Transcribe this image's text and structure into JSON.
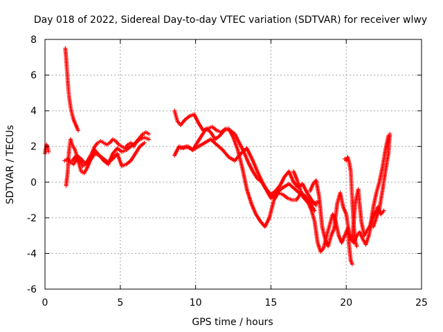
{
  "chart_data": {
    "type": "scatter",
    "title": "Day 018 of 2022, Sidereal Day-to-day VTEC variation (SDTVAR) for receiver wlwy",
    "xlabel": "GPS time / hours",
    "ylabel": "SDTVAR / TECUs",
    "xlim": [
      0,
      25
    ],
    "ylim": [
      -6,
      8
    ],
    "xticks": [
      0,
      5,
      10,
      15,
      20,
      25
    ],
    "yticks": [
      -6,
      -4,
      -2,
      0,
      2,
      4,
      6,
      8
    ],
    "grid": true,
    "marker": "+",
    "color": "#ff0000",
    "series": [
      {
        "x": [
          0.0,
          0.1,
          0.2,
          0.25
        ],
        "y": [
          1.6,
          2.1,
          1.9,
          1.7
        ]
      },
      {
        "x": [
          1.35,
          1.4,
          1.45,
          1.5,
          1.55,
          1.6,
          1.65,
          1.7,
          1.8,
          1.9,
          2.0,
          2.1,
          2.2
        ],
        "y": [
          7.5,
          7.0,
          6.4,
          5.8,
          5.2,
          4.8,
          4.5,
          4.2,
          3.8,
          3.5,
          3.3,
          3.1,
          2.9
        ]
      },
      {
        "x": [
          1.3,
          1.5,
          1.7,
          1.9,
          2.1,
          2.3,
          2.5,
          2.7,
          2.9,
          3.1,
          3.3,
          3.5,
          3.7,
          3.9,
          4.1,
          4.3,
          4.5,
          4.7,
          4.9,
          5.1,
          5.3,
          5.5,
          5.7,
          5.9,
          6.1,
          6.3,
          6.5,
          6.7,
          6.9
        ],
        "y": [
          1.2,
          1.3,
          1.1,
          1.0,
          1.3,
          1.2,
          0.9,
          1.0,
          1.3,
          1.6,
          2.0,
          2.2,
          2.3,
          2.2,
          2.1,
          2.2,
          2.4,
          2.3,
          2.1,
          2.0,
          1.9,
          2.1,
          2.2,
          2.0,
          2.3,
          2.5,
          2.7,
          2.8,
          2.7
        ]
      },
      {
        "x": [
          1.4,
          1.5,
          1.6,
          1.7,
          1.8,
          2.0,
          2.2,
          2.4,
          2.6,
          2.8,
          3.0,
          3.3,
          3.6,
          3.9,
          4.2,
          4.5,
          4.8,
          5.1,
          5.4,
          5.7,
          6.0,
          6.3,
          6.6,
          6.9
        ],
        "y": [
          -0.2,
          0.5,
          1.8,
          2.4,
          2.1,
          1.8,
          1.2,
          0.6,
          0.5,
          0.8,
          1.2,
          1.6,
          1.5,
          1.2,
          1.0,
          1.6,
          1.9,
          1.7,
          1.8,
          2.0,
          2.2,
          2.4,
          2.5,
          2.4
        ]
      },
      {
        "x": [
          1.8,
          2.1,
          2.4,
          2.7,
          3.0,
          3.3,
          3.6,
          3.9,
          4.2,
          4.5,
          4.8,
          5.1,
          5.4,
          5.7,
          6.0,
          6.3,
          6.6
        ],
        "y": [
          1.2,
          1.5,
          1.3,
          1.0,
          1.4,
          1.8,
          1.5,
          1.3,
          1.1,
          1.3,
          1.6,
          0.9,
          1.0,
          1.2,
          1.6,
          2.0,
          2.2
        ]
      },
      {
        "x": [
          8.6,
          8.8,
          9.0,
          9.3,
          9.6,
          9.9,
          10.2,
          10.5,
          10.8,
          11.1,
          11.4,
          11.7,
          12.0,
          12.3,
          12.6,
          12.9,
          13.2,
          13.5,
          13.8,
          14.1,
          14.4,
          14.7,
          15.0,
          15.3,
          15.6,
          15.9,
          16.2,
          16.5,
          16.8,
          17.1,
          17.4,
          17.7,
          18.0
        ],
        "y": [
          4.0,
          3.4,
          3.2,
          3.5,
          3.7,
          3.8,
          3.3,
          2.9,
          3.0,
          3.1,
          2.9,
          2.8,
          3.0,
          2.9,
          2.7,
          2.2,
          1.7,
          1.1,
          0.6,
          0.2,
          0.0,
          -0.4,
          -0.7,
          -0.5,
          -0.2,
          0.3,
          0.6,
          0.0,
          -0.3,
          -0.1,
          -0.6,
          -1.0,
          -1.3
        ]
      },
      {
        "x": [
          8.6,
          8.9,
          9.2,
          9.5,
          9.8,
          10.1,
          10.4,
          10.7,
          11.0,
          11.3,
          11.6,
          11.9,
          12.2,
          12.5,
          12.8,
          13.1,
          13.4,
          13.7,
          14.0,
          14.3,
          14.6,
          14.9,
          15.2,
          15.5,
          15.8,
          16.1,
          16.4,
          16.7,
          17.0,
          17.3,
          17.6,
          17.9
        ],
        "y": [
          1.5,
          2.0,
          1.9,
          2.0,
          1.8,
          2.2,
          2.6,
          3.0,
          2.8,
          2.4,
          2.6,
          2.9,
          3.0,
          2.5,
          1.8,
          0.8,
          -0.4,
          -1.2,
          -1.8,
          -2.2,
          -2.5,
          -2.0,
          -1.0,
          -0.6,
          -0.7,
          -0.9,
          -1.0,
          -1.0,
          -0.6,
          -0.8,
          -1.2,
          -1.6
        ]
      },
      {
        "x": [
          9.0,
          9.4,
          9.8,
          10.2,
          10.6,
          11.0,
          11.4,
          11.8,
          12.2,
          12.6,
          13.0,
          13.4,
          13.8,
          14.2,
          14.6,
          15.0,
          15.4,
          15.8,
          16.2,
          16.6,
          17.0,
          17.4,
          17.8,
          18.2
        ],
        "y": [
          1.9,
          2.0,
          1.8,
          2.0,
          2.2,
          2.4,
          2.1,
          1.8,
          1.4,
          1.2,
          1.6,
          1.9,
          1.2,
          0.4,
          -0.3,
          -0.9,
          -0.6,
          -0.3,
          -0.1,
          -0.4,
          -0.7,
          -1.0,
          -1.2,
          -1.1
        ]
      },
      {
        "x": [
          16.5,
          16.7,
          16.9,
          17.1,
          17.3,
          17.5,
          17.7,
          17.9,
          18.1,
          18.3,
          18.5,
          18.7,
          18.9,
          19.1,
          19.3,
          19.5,
          19.7,
          19.9,
          20.1,
          20.3,
          20.5,
          20.7,
          20.9,
          21.1,
          21.3,
          21.5,
          21.7,
          21.9,
          22.1,
          22.3,
          22.5
        ],
        "y": [
          0.6,
          0.2,
          -0.3,
          -0.8,
          -1.0,
          -1.2,
          -1.6,
          -2.2,
          -3.4,
          -3.9,
          -3.7,
          -3.0,
          -2.4,
          -1.8,
          -2.2,
          -3.0,
          -3.4,
          -3.0,
          -2.6,
          -3.2,
          -3.4,
          -3.0,
          -2.8,
          -3.2,
          -3.5,
          -3.0,
          -2.2,
          -1.8,
          -1.4,
          -1.8,
          -1.6
        ]
      },
      {
        "x": [
          17.6,
          17.8,
          18.0,
          18.2,
          18.4,
          18.6,
          18.8,
          19.0,
          19.2,
          19.4,
          19.6,
          19.8,
          20.0,
          20.2,
          20.4,
          20.6,
          20.8,
          21.0,
          21.2,
          21.4,
          21.6,
          21.8,
          22.0,
          22.2,
          22.4,
          22.6,
          22.8
        ],
        "y": [
          -0.5,
          -0.1,
          0.1,
          -0.8,
          -2.5,
          -3.2,
          -3.6,
          -3.0,
          -2.6,
          -1.2,
          -0.6,
          -1.4,
          -1.8,
          -2.9,
          -3.2,
          -1.2,
          -0.4,
          -2.2,
          -3.0,
          -2.7,
          -2.4,
          -1.4,
          -0.6,
          0.0,
          0.8,
          1.8,
          2.6
        ]
      },
      {
        "x": [
          19.9,
          20.0,
          20.1,
          20.2,
          20.3,
          20.4,
          20.5,
          20.6,
          20.7
        ],
        "y": [
          1.3,
          1.2,
          1.4,
          1.1,
          0.6,
          -1.0,
          -2.4,
          -3.3,
          -3.6
        ]
      },
      {
        "x": [
          20.1,
          20.2,
          20.3,
          20.4
        ],
        "y": [
          -2.6,
          -3.6,
          -4.4,
          -4.6
        ]
      },
      {
        "x": [
          21.8,
          22.0,
          22.2,
          22.4,
          22.6,
          22.8,
          22.9
        ],
        "y": [
          -2.5,
          -2.0,
          -1.5,
          -0.5,
          0.6,
          1.6,
          2.7
        ]
      }
    ]
  }
}
